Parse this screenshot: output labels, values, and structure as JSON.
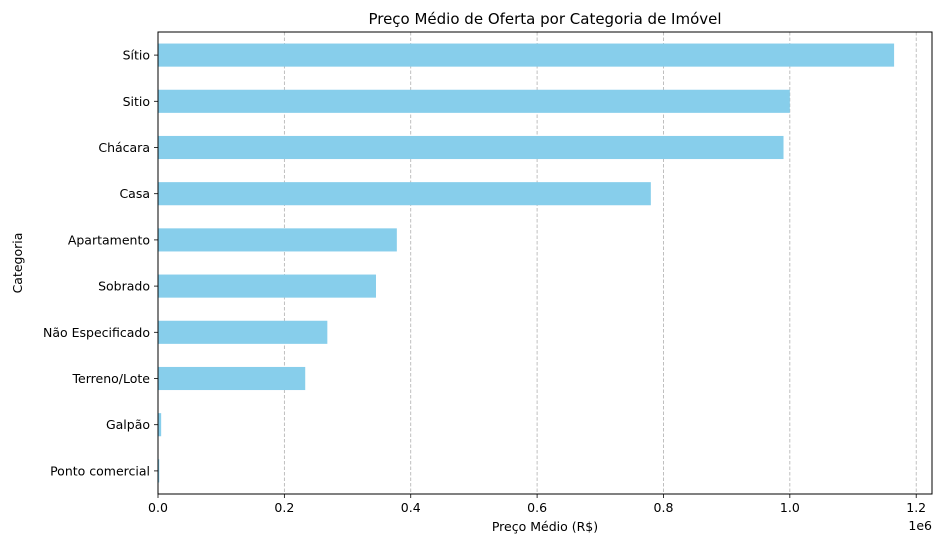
{
  "chart_data": {
    "type": "bar",
    "orientation": "horizontal",
    "title": "Preço Médio de Oferta por Categoria de Imóvel",
    "xlabel": "Preço Médio (R$)",
    "ylabel": "Categoria",
    "x_offset_text": "1e6",
    "xlim": [
      0,
      1.225
    ],
    "xticks": [
      0.0,
      0.2,
      0.4,
      0.6,
      0.8,
      1.0,
      1.2
    ],
    "xtick_labels": [
      "0.0",
      "0.2",
      "0.4",
      "0.6",
      "0.8",
      "1.0",
      "1.2"
    ],
    "grid": "x, dashed",
    "bar_color": "#87CEEB",
    "categories": [
      "Sítio",
      "Sitio",
      "Chácara",
      "Casa",
      "Apartamento",
      "Sobrado",
      "Não Especificado",
      "Terreno/Lote",
      "Galpão",
      "Ponto comercial"
    ],
    "values": [
      1.165,
      1.0,
      0.99,
      0.78,
      0.378,
      0.345,
      0.268,
      0.233,
      0.005,
      0.002
    ]
  }
}
